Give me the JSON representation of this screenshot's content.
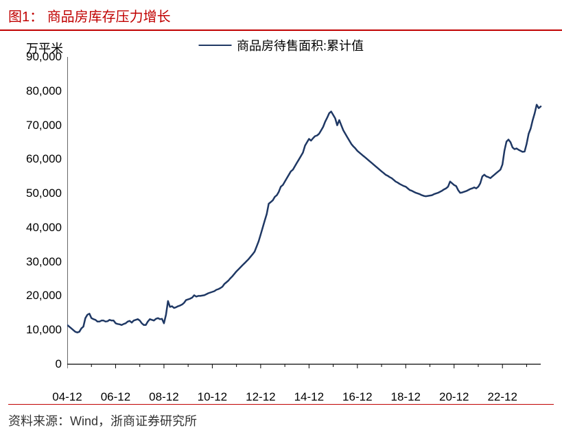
{
  "title_prefix": "图1：",
  "title_text": "商品房库存压力增长",
  "y_unit": "万平米",
  "legend_label": "商品房待售面积:累计值",
  "source_text": "资料来源：Wind，浙商证券研究所",
  "chart": {
    "type": "line",
    "line_color": "#1f3864",
    "line_width": 2.5,
    "axis_color": "#000000",
    "background": "#ffffff",
    "ylim": [
      0,
      90000
    ],
    "ytick_step": 10000,
    "yticks": [
      0,
      10000,
      20000,
      30000,
      40000,
      50000,
      60000,
      70000,
      80000,
      90000
    ],
    "ytick_labels": [
      "0",
      "10,000",
      "20,000",
      "30,000",
      "40,000",
      "50,000",
      "60,000",
      "70,000",
      "80,000",
      "90,000"
    ],
    "xtick_positions": [
      0,
      24,
      48,
      72,
      96,
      120,
      144,
      168,
      192,
      216
    ],
    "xtick_labels": [
      "04-12",
      "06-12",
      "08-12",
      "10-12",
      "12-12",
      "14-12",
      "16-12",
      "18-12",
      "20-12",
      "22-12"
    ],
    "x_count": 236,
    "series": [
      11500,
      11000,
      10500,
      10000,
      9500,
      9300,
      9500,
      10500,
      11000,
      13500,
      14500,
      14800,
      13500,
      13200,
      13000,
      12500,
      12500,
      12800,
      12800,
      12500,
      12600,
      13000,
      12800,
      12800,
      12000,
      11800,
      11700,
      11500,
      11800,
      12000,
      12500,
      12700,
      12200,
      12800,
      13000,
      13200,
      12800,
      12000,
      11500,
      11500,
      12500,
      13200,
      13000,
      12800,
      13300,
      13500,
      13200,
      13300,
      12000,
      14500,
      18500,
      16800,
      17000,
      16500,
      16700,
      17000,
      17200,
      17500,
      18000,
      18800,
      19000,
      19200,
      19500,
      20200,
      19800,
      20000,
      20000,
      20100,
      20200,
      20500,
      20800,
      21000,
      21200,
      21400,
      21800,
      22000,
      22300,
      22700,
      23500,
      24000,
      24500,
      25200,
      25800,
      26500,
      27200,
      27800,
      28400,
      29000,
      29600,
      30200,
      30800,
      31500,
      32200,
      33000,
      34500,
      36000,
      38000,
      40000,
      42000,
      44000,
      47000,
      47500,
      48000,
      49000,
      49500,
      50500,
      52000,
      52500,
      53500,
      54500,
      55500,
      56500,
      57000,
      58000,
      59000,
      60000,
      61000,
      62000,
      64000,
      65000,
      66000,
      65500,
      66200,
      66800,
      67000,
      67500,
      68500,
      69500,
      71000,
      72200,
      73500,
      74000,
      73000,
      72000,
      70000,
      71500,
      70000,
      68500,
      67500,
      66500,
      65500,
      64500,
      63800,
      63200,
      62500,
      62000,
      61500,
      61000,
      60500,
      60000,
      59500,
      59000,
      58500,
      58000,
      57500,
      57000,
      56500,
      56000,
      55500,
      55200,
      54800,
      54500,
      54000,
      53500,
      53200,
      52800,
      52500,
      52200,
      52000,
      51500,
      51000,
      50800,
      50500,
      50200,
      50000,
      49800,
      49500,
      49300,
      49200,
      49300,
      49400,
      49500,
      49800,
      50000,
      50200,
      50500,
      50800,
      51200,
      51500,
      52000,
      53500,
      53000,
      52500,
      52200,
      51000,
      50200,
      50300,
      50500,
      50700,
      51000,
      51300,
      51500,
      51800,
      51500,
      52000,
      53000,
      55000,
      55500,
      55000,
      54800,
      54500,
      55000,
      55500,
      56000,
      56500,
      57000,
      58500,
      62500,
      65200,
      65800,
      65000,
      63500,
      63000,
      63200,
      62800,
      62500,
      62200,
      62300,
      64500,
      67500,
      69000,
      71500,
      73500,
      76000,
      75000,
      75500
    ]
  }
}
